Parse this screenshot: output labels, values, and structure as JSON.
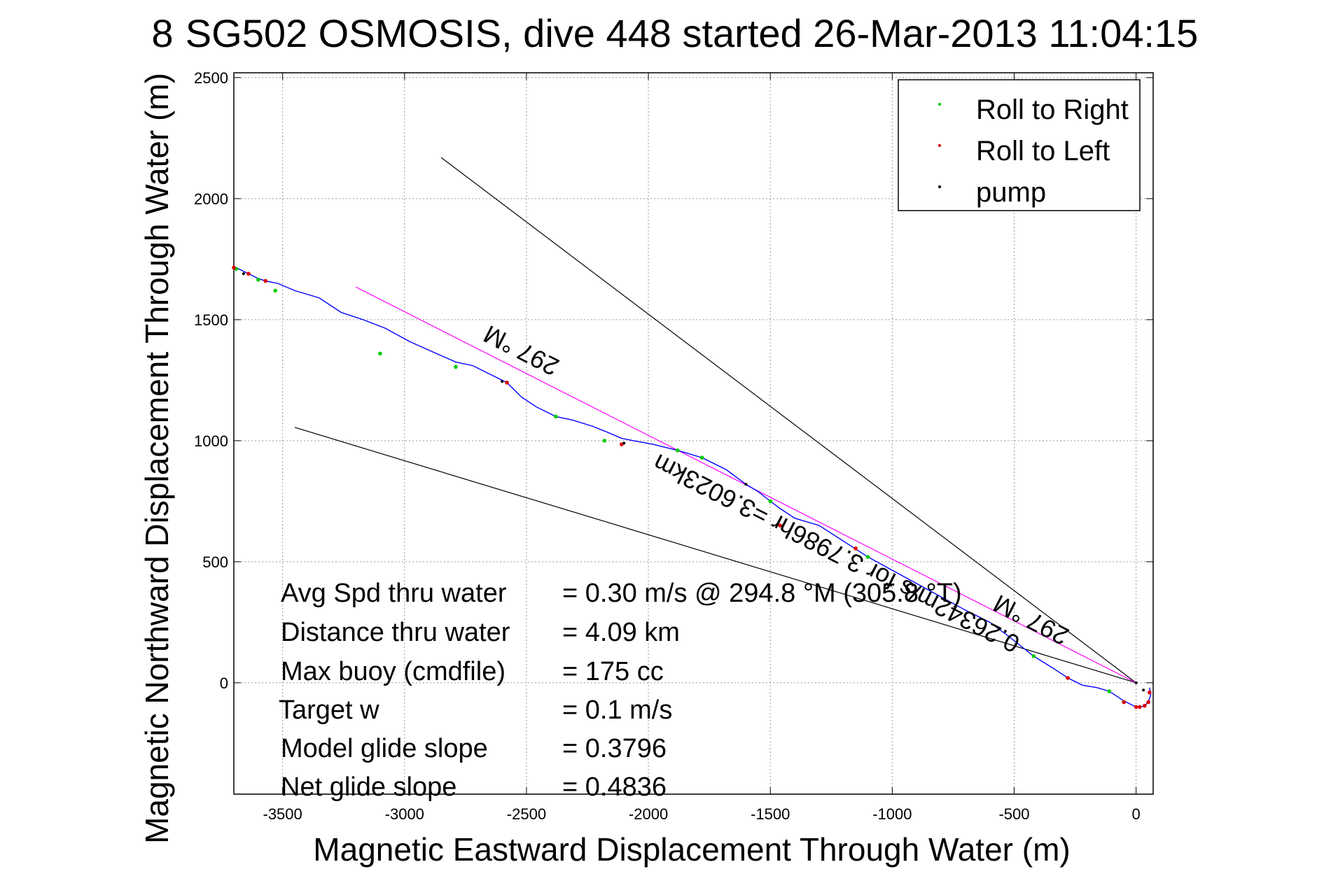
{
  "chart_data": {
    "type": "line",
    "title": "SG502 OSMOSIS, dive 448 started 26-Mar-2013 11:04:15",
    "title_overlay_glyph": "8",
    "xlabel": "Magnetic Eastward Displacement Through Water (m)",
    "ylabel": "Magnetic Northward Displacement Through Water (m)",
    "xlim": [
      -3700,
      70
    ],
    "ylim": [
      -460,
      2520
    ],
    "xticks": [
      -3500,
      -3000,
      -2500,
      -2000,
      -1500,
      -1000,
      -500,
      0
    ],
    "yticks": [
      0,
      500,
      1000,
      1500,
      2000,
      2500
    ],
    "grid": true,
    "legend_position": "top-right",
    "legend": [
      {
        "label": "Roll to Right",
        "color": "#00cc00"
      },
      {
        "label": "Roll to Left",
        "color": "#dd0000"
      },
      {
        "label": "pump",
        "color": "#000000"
      }
    ],
    "series": [
      {
        "name": "Track",
        "color": "#0000ff",
        "x": [
          55,
          60,
          50,
          35,
          15,
          0,
          -50,
          -110,
          -160,
          -220,
          -280,
          -340,
          -420,
          -520,
          -600,
          -700,
          -800,
          -900,
          -1000,
          -1100,
          -1200,
          -1300,
          -1400,
          -1460,
          -1500,
          -1550,
          -1600,
          -1680,
          -1780,
          -1880,
          -1980,
          -2060,
          -2110,
          -2180,
          -2230,
          -2310,
          -2380,
          -2460,
          -2520,
          -2580,
          -2640,
          -2720,
          -2790,
          -2880,
          -2980,
          -3080,
          -3170,
          -3260,
          -3350,
          -3450,
          -3520,
          -3570,
          -3600,
          -3630,
          -3660,
          -3700
        ],
        "y": [
          -20,
          -50,
          -80,
          -95,
          -100,
          -100,
          -75,
          -35,
          -20,
          -10,
          20,
          60,
          110,
          190,
          250,
          300,
          355,
          410,
          465,
          520,
          585,
          650,
          680,
          720,
          750,
          790,
          820,
          880,
          930,
          960,
          985,
          1000,
          1010,
          1040,
          1060,
          1085,
          1100,
          1140,
          1180,
          1240,
          1270,
          1310,
          1325,
          1365,
          1410,
          1465,
          1500,
          1530,
          1590,
          1620,
          1650,
          1660,
          1670,
          1685,
          1700,
          1720
        ]
      },
      {
        "name": "Roll to Right",
        "color": "#00cc00",
        "x": [
          -3690,
          -3600,
          -3530,
          -3100,
          -2790,
          -2380,
          -2180,
          -1880,
          -1780,
          -1500,
          -1100,
          -110,
          -420
        ],
        "y": [
          1710,
          1665,
          1620,
          1360,
          1305,
          1100,
          1000,
          960,
          930,
          750,
          520,
          -35,
          110
        ]
      },
      {
        "name": "Roll to Left",
        "color": "#dd0000",
        "x": [
          -3700,
          -3640,
          -3570,
          -2580,
          -2110,
          -1460,
          -1150,
          -280,
          15,
          0,
          55,
          50,
          35,
          -50
        ],
        "y": [
          1715,
          1690,
          1660,
          1240,
          985,
          650,
          555,
          20,
          -100,
          -100,
          -40,
          -80,
          -95,
          -80
        ]
      },
      {
        "name": "pump",
        "color": "#000000",
        "x": [
          -3660,
          -2600,
          -2100,
          -1600,
          0,
          30
        ],
        "y": [
          1690,
          1245,
          990,
          820,
          0,
          -30
        ]
      }
    ],
    "reference_lines": [
      {
        "label": "297 °M",
        "color": "#000000",
        "x": [
          0,
          -2850
        ],
        "y": [
          0,
          2170
        ]
      },
      {
        "label": "297 °M",
        "color": "#000000",
        "x": [
          0,
          -3450
        ],
        "y": [
          0,
          1055
        ]
      },
      {
        "label": "0.26342m/s for 3.7986hr = 3.6023km 297 °M",
        "color": "#ff00ff",
        "x": [
          0,
          -3200
        ],
        "y": [
          0,
          1635
        ]
      }
    ],
    "annotations": [
      {
        "text": "297 °M"
      },
      {
        "text": "0.26342m/s for 3.7986hr =3.6023km"
      },
      {
        "text": "297 °M"
      }
    ],
    "stats": [
      {
        "label": "Avg Spd thru water",
        "value": "=  0.30 m/s @ 294.8  °M (305.8  °T)"
      },
      {
        "label": "Distance thru water",
        "value": "=  4.09 km"
      },
      {
        "label": "Max buoy (cmdfile)",
        "value": "= 175 cc"
      },
      {
        "label": "Target w",
        "value": "= 0.1 m/s"
      },
      {
        "label": "Model glide slope",
        "value": "= 0.3796"
      },
      {
        "label": "Net glide slope",
        "value": "= 0.4836"
      }
    ]
  }
}
